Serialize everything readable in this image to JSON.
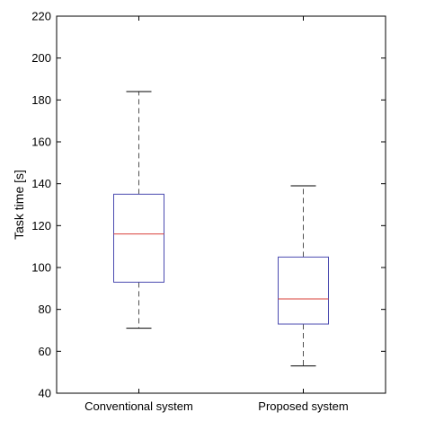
{
  "chart_data": {
    "type": "box",
    "ylabel": "Task time [s]",
    "xlabel": "",
    "ylim": [
      40,
      220
    ],
    "yticks": [
      40,
      60,
      80,
      100,
      120,
      140,
      160,
      180,
      200,
      220
    ],
    "grid": false,
    "categories": [
      "Conventional system",
      "Proposed system"
    ],
    "boxes": [
      {
        "category": "Conventional system",
        "whisker_low": 71,
        "q1": 93,
        "median": 116,
        "q3": 135,
        "whisker_high": 184
      },
      {
        "category": "Proposed system",
        "whisker_low": 53,
        "q1": 73,
        "median": 85,
        "q3": 105,
        "whisker_high": 139
      }
    ],
    "colors": {
      "box": "#4b4bb0",
      "median": "#d9403a",
      "whisker": "#505050",
      "axes": "#000000"
    }
  }
}
